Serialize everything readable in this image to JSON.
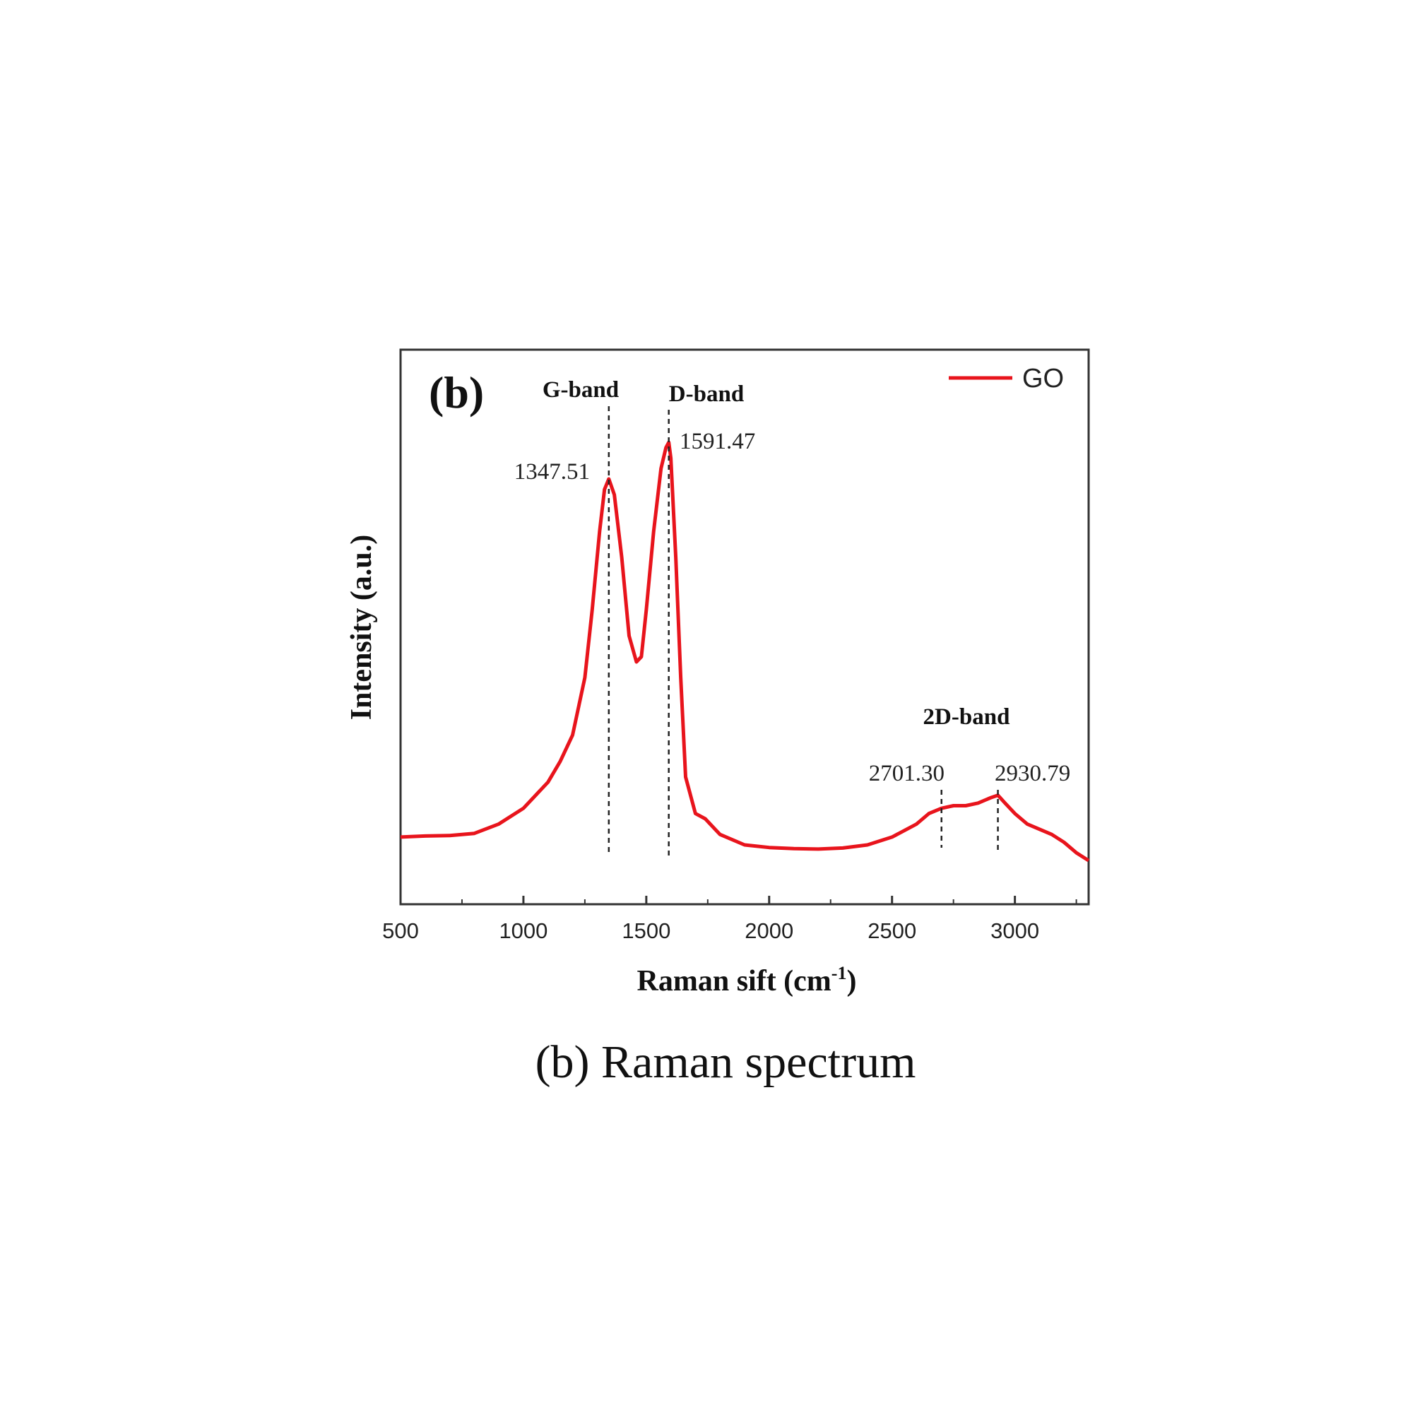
{
  "panel_label": "(b)",
  "caption": "(b) Raman spectrum",
  "colors": {
    "series": "#e8141c",
    "axis": "#333333",
    "guide": "#222222"
  },
  "chart_data": {
    "type": "line",
    "xlabel": "Raman sift (cm",
    "xlabel_sup": "-1",
    "xlabel_close": ")",
    "ylabel": "Intensity (a.u.)",
    "xlim": [
      500,
      3300
    ],
    "ylim": [
      0,
      1
    ],
    "xticks": [
      500,
      1000,
      1500,
      2000,
      2500,
      3000
    ],
    "grid": false,
    "legend": {
      "position": "top-right",
      "entries": [
        "GO"
      ]
    },
    "series": [
      {
        "name": "GO",
        "x": [
          500,
          600,
          700,
          800,
          900,
          1000,
          1100,
          1150,
          1200,
          1250,
          1280,
          1310,
          1330,
          1347.51,
          1370,
          1400,
          1430,
          1460,
          1480,
          1500,
          1530,
          1560,
          1580,
          1591.47,
          1600,
          1620,
          1640,
          1660,
          1700,
          1740,
          1800,
          1900,
          2000,
          2100,
          2200,
          2300,
          2400,
          2500,
          2600,
          2650,
          2701.3,
          2750,
          2800,
          2850,
          2900,
          2930.79,
          2960,
          3000,
          3050,
          3100,
          3150,
          3200,
          3250,
          3300
        ],
        "y": [
          0.115,
          0.117,
          0.118,
          0.122,
          0.14,
          0.17,
          0.22,
          0.26,
          0.31,
          0.42,
          0.55,
          0.7,
          0.78,
          0.8,
          0.77,
          0.65,
          0.5,
          0.45,
          0.46,
          0.55,
          0.7,
          0.82,
          0.86,
          0.87,
          0.84,
          0.65,
          0.42,
          0.23,
          0.16,
          0.15,
          0.12,
          0.1,
          0.095,
          0.093,
          0.092,
          0.094,
          0.1,
          0.115,
          0.14,
          0.16,
          0.17,
          0.175,
          0.175,
          0.18,
          0.19,
          0.195,
          0.18,
          0.16,
          0.14,
          0.13,
          0.12,
          0.105,
          0.085,
          0.07
        ]
      }
    ],
    "annotations": {
      "bands": [
        {
          "label": "G-band",
          "x": 1347.51
        },
        {
          "label": "D-band",
          "x": 1591.47
        },
        {
          "label": "2D-band",
          "x": 2816
        }
      ],
      "peaks": [
        {
          "label": "1347.51",
          "x": 1347.51
        },
        {
          "label": "1591.47",
          "x": 1591.47
        },
        {
          "label": "2701.30",
          "x": 2701.3
        },
        {
          "label": "2930.79",
          "x": 2930.79
        }
      ]
    }
  }
}
